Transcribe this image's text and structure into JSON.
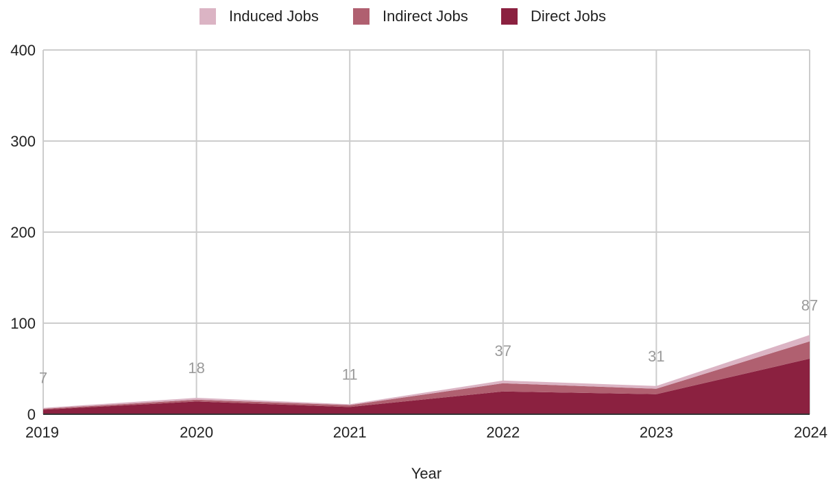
{
  "chart_data": {
    "type": "area",
    "stacked": true,
    "x": [
      "2019",
      "2020",
      "2021",
      "2022",
      "2023",
      "2024"
    ],
    "series": [
      {
        "name": "Direct Jobs",
        "color": "#8b2140",
        "values": [
          5,
          14,
          8,
          25,
          22,
          61
        ]
      },
      {
        "name": "Indirect Jobs",
        "color": "#b06070",
        "values": [
          1,
          2,
          2,
          9,
          6,
          19
        ]
      },
      {
        "name": "Induced Jobs",
        "color": "#dbb4c4",
        "values": [
          1,
          2,
          1,
          3,
          3,
          7
        ]
      }
    ],
    "totals": [
      7,
      18,
      11,
      37,
      31,
      87
    ],
    "legend_order": [
      "Induced Jobs",
      "Indirect Jobs",
      "Direct Jobs"
    ],
    "legend_position": "top",
    "xlabel": "Year",
    "ylabel": "",
    "ylim": [
      0,
      400
    ],
    "yticks": [
      0,
      100,
      200,
      300,
      400
    ],
    "grid": true,
    "total_label_color": "#9a9a9a"
  }
}
